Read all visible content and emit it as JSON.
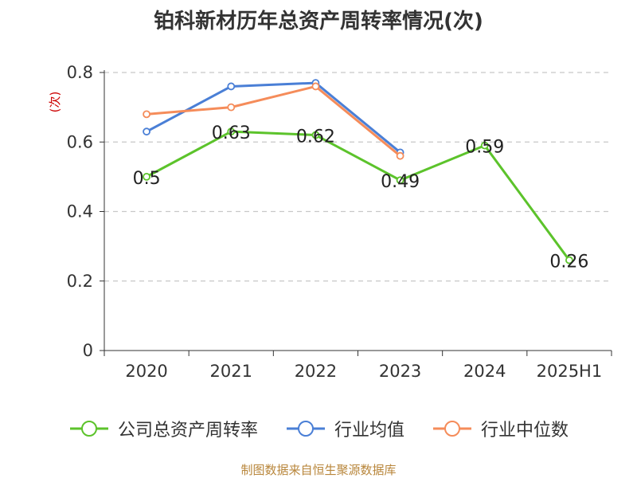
{
  "title": "铂科新材历年总资产周转率情况(次)",
  "source": "制图数据来自恒生聚源数据库",
  "chart_data": {
    "type": "line",
    "title": "铂科新材历年总资产周转率情况(次)",
    "ylabel": "(次)",
    "xlabel": "",
    "categories": [
      "2020",
      "2021",
      "2022",
      "2023",
      "2024",
      "2025H1"
    ],
    "ylim": [
      0,
      0.8
    ],
    "yticks": [
      0,
      0.2,
      0.4,
      0.6,
      0.8
    ],
    "ytick_labels": [
      "0",
      "0.2",
      "0.4",
      "0.6",
      "0.8"
    ],
    "grid": "horizontal dashed",
    "legend_position": "bottom",
    "series": [
      {
        "name": "公司总资产周转率",
        "color": "#5cc32b",
        "values": [
          0.5,
          0.63,
          0.62,
          0.49,
          0.59,
          0.26
        ],
        "labels": [
          "0.5",
          "0.63",
          "0.62",
          "0.49",
          "0.59",
          "0.26"
        ]
      },
      {
        "name": "行业均值",
        "color": "#4a7fd6",
        "values": [
          0.63,
          0.76,
          0.77,
          0.57,
          null,
          null
        ]
      },
      {
        "name": "行业中位数",
        "color": "#f58c5a",
        "values": [
          0.68,
          0.7,
          0.76,
          0.56,
          null,
          null
        ]
      }
    ]
  }
}
